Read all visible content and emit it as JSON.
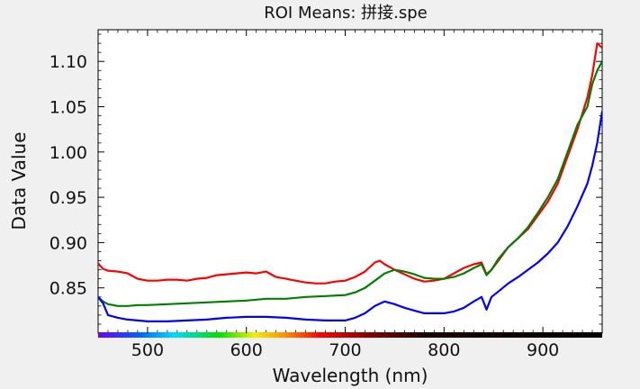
{
  "chart_data": {
    "type": "line",
    "title": "ROI Means: 拼接.spe",
    "xlabel": "Wavelength (nm)",
    "ylabel": "Data Value",
    "xlim": [
      450,
      960
    ],
    "ylim": [
      0.8,
      1.135
    ],
    "xticks": [
      500,
      600,
      700,
      800,
      900
    ],
    "xtick_labels": [
      "500",
      "600",
      "700",
      "800",
      "900"
    ],
    "yticks": [
      0.85,
      0.9,
      0.95,
      1.0,
      1.05,
      1.1
    ],
    "ytick_labels": [
      "0.85",
      "0.90",
      "0.95",
      "1.00",
      "1.05",
      "1.10"
    ],
    "grid": false,
    "legend": "none",
    "wavelength_colorbar": true,
    "series": [
      {
        "color": "#ff0000",
        "x": [
          450,
          455,
          460,
          470,
          480,
          490,
          500,
          510,
          520,
          530,
          540,
          550,
          560,
          570,
          580,
          590,
          600,
          610,
          620,
          630,
          640,
          650,
          660,
          670,
          680,
          690,
          700,
          710,
          720,
          730,
          735,
          740,
          750,
          760,
          770,
          780,
          790,
          800,
          810,
          820,
          830,
          838,
          843,
          848,
          855,
          865,
          875,
          885,
          895,
          905,
          915,
          925,
          935,
          945,
          950,
          955,
          960
        ],
        "values": [
          0.877,
          0.871,
          0.869,
          0.868,
          0.866,
          0.86,
          0.858,
          0.858,
          0.859,
          0.859,
          0.858,
          0.86,
          0.861,
          0.864,
          0.865,
          0.866,
          0.867,
          0.866,
          0.868,
          0.862,
          0.86,
          0.858,
          0.856,
          0.855,
          0.855,
          0.857,
          0.858,
          0.862,
          0.868,
          0.878,
          0.88,
          0.876,
          0.87,
          0.865,
          0.86,
          0.857,
          0.858,
          0.86,
          0.866,
          0.872,
          0.876,
          0.878,
          0.865,
          0.87,
          0.88,
          0.895,
          0.905,
          0.915,
          0.93,
          0.945,
          0.965,
          0.995,
          1.025,
          1.06,
          1.085,
          1.12,
          1.115
        ]
      },
      {
        "color": "#008000",
        "x": [
          450,
          455,
          460,
          470,
          480,
          490,
          500,
          520,
          540,
          560,
          580,
          600,
          620,
          640,
          660,
          680,
          700,
          710,
          720,
          730,
          740,
          750,
          760,
          770,
          780,
          790,
          800,
          810,
          820,
          830,
          838,
          843,
          848,
          855,
          865,
          875,
          885,
          895,
          905,
          915,
          925,
          935,
          945,
          950,
          955,
          960
        ],
        "values": [
          0.84,
          0.835,
          0.832,
          0.83,
          0.83,
          0.831,
          0.831,
          0.832,
          0.833,
          0.834,
          0.835,
          0.836,
          0.838,
          0.838,
          0.84,
          0.841,
          0.842,
          0.845,
          0.85,
          0.858,
          0.866,
          0.87,
          0.868,
          0.865,
          0.861,
          0.86,
          0.86,
          0.862,
          0.866,
          0.872,
          0.876,
          0.864,
          0.87,
          0.882,
          0.895,
          0.905,
          0.917,
          0.933,
          0.95,
          0.97,
          1.0,
          1.03,
          1.05,
          1.075,
          1.09,
          1.1
        ]
      },
      {
        "color": "#0000ff",
        "x": [
          450,
          455,
          460,
          470,
          480,
          490,
          500,
          520,
          540,
          560,
          580,
          600,
          620,
          640,
          660,
          680,
          700,
          710,
          720,
          730,
          740,
          750,
          760,
          770,
          780,
          790,
          800,
          810,
          820,
          830,
          838,
          843,
          848,
          855,
          865,
          875,
          885,
          895,
          905,
          915,
          925,
          935,
          945,
          950,
          955,
          960
        ],
        "values": [
          0.84,
          0.833,
          0.82,
          0.817,
          0.815,
          0.814,
          0.813,
          0.813,
          0.814,
          0.815,
          0.817,
          0.818,
          0.818,
          0.817,
          0.815,
          0.814,
          0.814,
          0.817,
          0.822,
          0.83,
          0.835,
          0.832,
          0.828,
          0.825,
          0.822,
          0.822,
          0.822,
          0.824,
          0.828,
          0.835,
          0.84,
          0.826,
          0.84,
          0.846,
          0.855,
          0.862,
          0.87,
          0.878,
          0.888,
          0.9,
          0.918,
          0.94,
          0.965,
          0.985,
          1.01,
          1.045
        ]
      }
    ]
  }
}
